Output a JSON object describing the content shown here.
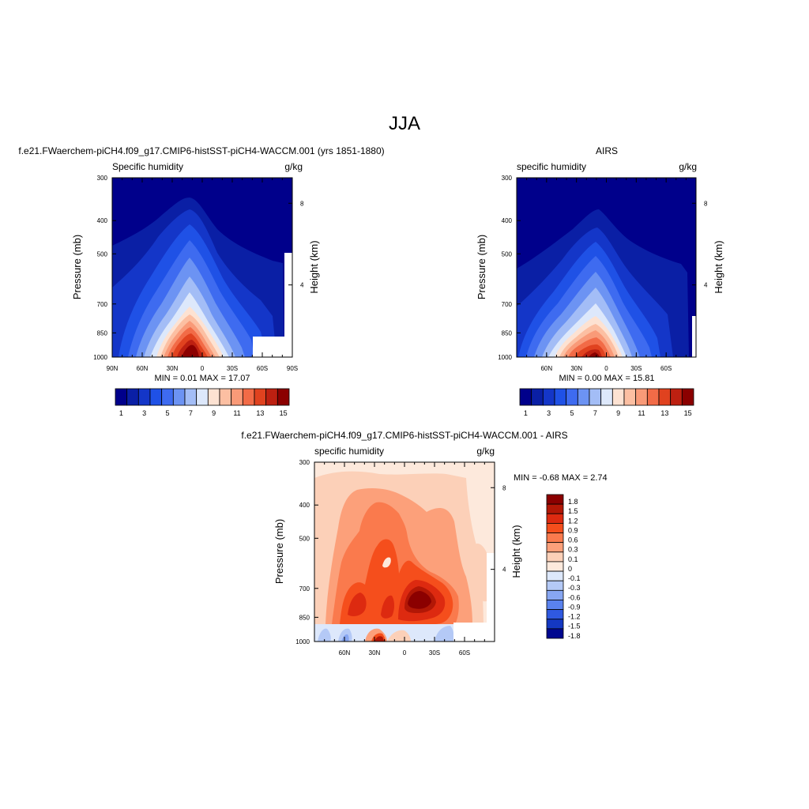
{
  "figure": {
    "title": "JJA"
  },
  "chart_data": [
    {
      "type": "contour",
      "title": "f.e21.FWaerchem-piCH4.f09_g17.CMIP6-histSST-piCH4-WACCM.001 (yrs 1851-1880)",
      "left_label": "Specific humidity",
      "units": "g/kg",
      "ylabel": "Pressure (mb)",
      "ylabel_right": "Height (km)",
      "y_ticks": [
        "300",
        "400",
        "500",
        "700",
        "850",
        "1000"
      ],
      "y_right_ticks": [
        "8",
        "4"
      ],
      "x_ticks": [
        "90N",
        "60N",
        "30N",
        "0",
        "30S",
        "60S",
        "90S"
      ],
      "minmax": "MIN =   0.01  MAX =  17.07",
      "levels": [
        1,
        2,
        3,
        4,
        5,
        6,
        7,
        8,
        9,
        10,
        11,
        12,
        13,
        14,
        15
      ],
      "colorbar_labels": [
        "1",
        "3",
        "5",
        "7",
        "9",
        "11",
        "13",
        "15"
      ]
    },
    {
      "type": "contour",
      "title": "AIRS",
      "left_label": "specific humidity",
      "units": "g/kg",
      "ylabel": "Pressure (mb)",
      "ylabel_right": "Height (km)",
      "y_ticks": [
        "300",
        "400",
        "500",
        "700",
        "850",
        "1000"
      ],
      "y_right_ticks": [
        "8",
        "4"
      ],
      "x_ticks": [
        "60N",
        "30N",
        "0",
        "30S",
        "60S"
      ],
      "minmax": "MIN =   0.00  MAX =  15.81",
      "levels": [
        1,
        2,
        3,
        4,
        5,
        6,
        7,
        8,
        9,
        10,
        11,
        12,
        13,
        14,
        15
      ],
      "colorbar_labels": [
        "1",
        "3",
        "5",
        "7",
        "9",
        "11",
        "13",
        "15"
      ]
    },
    {
      "type": "contour",
      "title": "f.e21.FWaerchem-piCH4.f09_g17.CMIP6-histSST-piCH4-WACCM.001 - AIRS",
      "left_label": "specific humidity",
      "units": "g/kg",
      "ylabel": "Pressure (mb)",
      "ylabel_right": "Height (km)",
      "y_ticks": [
        "300",
        "400",
        "500",
        "700",
        "850",
        "1000"
      ],
      "y_right_ticks": [
        "8",
        "4"
      ],
      "x_ticks": [
        "60N",
        "30N",
        "0",
        "30S",
        "60S"
      ],
      "minmax": "MIN = -0.68  MAX =   2.74",
      "colorbar_labels": [
        "1.8",
        "1.5",
        "1.2",
        "0.9",
        "0.6",
        "0.3",
        "0.1",
        "0",
        "-0.1",
        "-0.3",
        "-0.6",
        "-0.9",
        "-1.2",
        "-1.5",
        "-1.8"
      ]
    }
  ],
  "colors": {
    "sequential": [
      "#00008b",
      "#0a1fa5",
      "#1436c8",
      "#1f51e6",
      "#3e6bf0",
      "#6c93f3",
      "#a3bdf6",
      "#dde8fb",
      "#fde2d2",
      "#fcbfa2",
      "#f99a78",
      "#f26b47",
      "#e0421f",
      "#bd2011",
      "#8b0000"
    ],
    "diverging": [
      "#8b0000",
      "#b21706",
      "#dd2a10",
      "#f54e1c",
      "#fa7a4d",
      "#fca07a",
      "#fcd0b8",
      "#fde9dc",
      "#dde8fb",
      "#b4c9f6",
      "#87a6f2",
      "#5a82ee",
      "#2f59e0",
      "#1438c2",
      "#00078f"
    ],
    "background": "#ffffff"
  }
}
